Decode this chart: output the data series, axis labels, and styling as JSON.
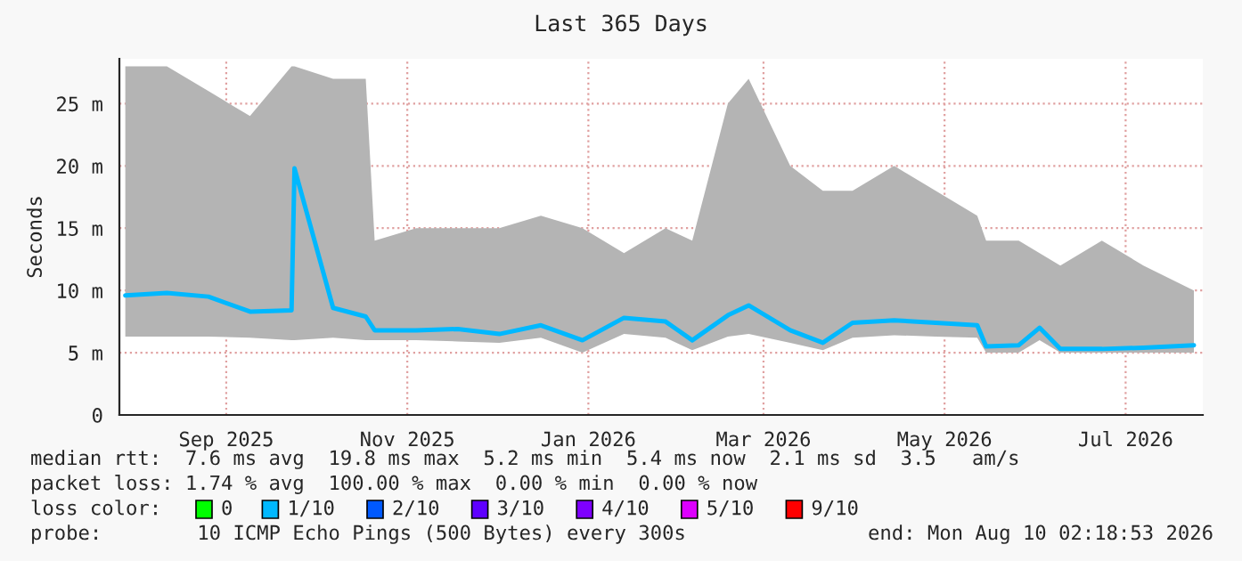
{
  "chart_data": {
    "type": "line",
    "title": "Last 365 Days",
    "ylabel": "Seconds",
    "xlim": [
      "2025-08-10",
      "2026-08-10"
    ],
    "xticks": [
      {
        "value": "2025-09-15",
        "label": "Sep 2025"
      },
      {
        "value": "2025-11-15",
        "label": "Nov 2025"
      },
      {
        "value": "2026-01-15",
        "label": "Jan 2026"
      },
      {
        "value": "2026-03-15",
        "label": "Mar 2026"
      },
      {
        "value": "2026-05-15",
        "label": "May 2026"
      },
      {
        "value": "2026-07-15",
        "label": "Jul 2026"
      }
    ],
    "ylim": [
      0,
      28.6
    ],
    "yticks": [
      0,
      {
        "value": 5,
        "label": "5 m"
      },
      {
        "value": 10,
        "label": "10 m"
      },
      {
        "value": 15,
        "label": "15 m"
      },
      {
        "value": 20,
        "label": "20 m"
      },
      {
        "value": 25,
        "label": "25 m"
      }
    ],
    "grid": true,
    "marker": "none",
    "line_style": "solid",
    "x": [
      "2025-08-12",
      "2025-08-26",
      "2025-09-09",
      "2025-09-23",
      "2025-10-07",
      "2025-10-08",
      "2025-10-21",
      "2025-11-01",
      "2025-11-04",
      "2025-11-18",
      "2025-12-02",
      "2025-12-16",
      "2025-12-30",
      "2026-01-13",
      "2026-01-27",
      "2026-02-10",
      "2026-02-19",
      "2026-03-03",
      "2026-03-10",
      "2026-03-24",
      "2026-04-04",
      "2026-04-14",
      "2026-04-28",
      "2026-05-12",
      "2026-05-26",
      "2026-05-29",
      "2026-06-09",
      "2026-06-16",
      "2026-06-23",
      "2026-07-07",
      "2026-07-21",
      "2026-08-07"
    ],
    "series": [
      {
        "color": "#00b8ff",
        "values": [
          9.6,
          9.8,
          9.5,
          8.3,
          8.4,
          19.8,
          8.6,
          7.9,
          6.8,
          6.8,
          6.9,
          6.5,
          7.2,
          6.0,
          7.8,
          7.5,
          6.0,
          8.0,
          8.8,
          6.8,
          5.8,
          7.4,
          7.6,
          7.4,
          7.2,
          5.5,
          5.6,
          7.0,
          5.3,
          5.3,
          5.4,
          5.6
        ],
        "lower": [
          6.3,
          6.3,
          6.3,
          6.2,
          6.0,
          6.0,
          6.2,
          6.0,
          6.0,
          6.0,
          5.9,
          5.8,
          6.2,
          5.0,
          6.5,
          6.2,
          5.2,
          6.3,
          6.5,
          5.8,
          5.2,
          6.2,
          6.4,
          6.3,
          6.2,
          5.0,
          5.0,
          6.0,
          5.0,
          5.0,
          5.0,
          5.0
        ],
        "upper": [
          28,
          28,
          26,
          24,
          28,
          28,
          27,
          27,
          14,
          15,
          15,
          15,
          16,
          15,
          13,
          15,
          14,
          25,
          27,
          20,
          18,
          18,
          20,
          18,
          16,
          14,
          14,
          13,
          12,
          14,
          12,
          10
        ]
      }
    ],
    "annotations": [
      "median rtt:  7.6 ms avg  19.8 ms max  5.2 ms min  5.4 ms now  2.1 ms sd  3.5   am/s",
      "packet loss: 1.74 % avg  100.00 % max  0.00 % min  0.00 % now",
      "loss color:",
      "0",
      "1/10",
      "2/10",
      "3/10",
      "4/10",
      "5/10",
      "9/10",
      "probe:        10 ICMP Echo Pings (500 Bytes) every 300s",
      "end: Mon Aug 10 02:18:53 2026"
    ]
  }
}
